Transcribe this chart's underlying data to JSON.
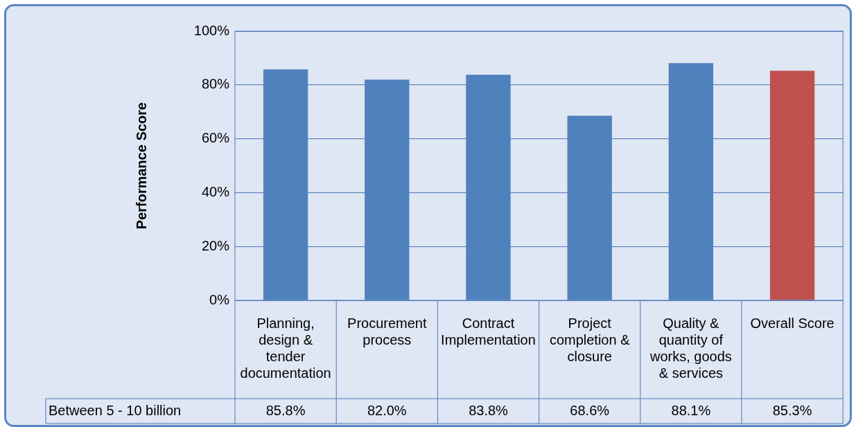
{
  "chart_data": {
    "type": "bar",
    "ylabel": "Performance Score",
    "categories": [
      "Planning, design & tender documentation",
      "Procurement process",
      "Contract Implementation",
      "Project completion & closure",
      "Quality & quantity of works, goods & services",
      "Overall Score"
    ],
    "series": [
      {
        "name": "Between 5 - 10 billion",
        "colors": [
          "#4f81bd",
          "#4f81bd",
          "#4f81bd",
          "#4f81bd",
          "#4f81bd",
          "#c0504d"
        ],
        "values": [
          85.8,
          82.0,
          83.8,
          68.6,
          88.1,
          85.3
        ],
        "value_labels": [
          "85.8%",
          "82.0%",
          "83.8%",
          "68.6%",
          "88.1%",
          "85.3%"
        ]
      }
    ],
    "ylim": [
      0,
      100
    ],
    "yticks": [
      {
        "value": 0,
        "label": "0%"
      },
      {
        "value": 20,
        "label": "20%"
      },
      {
        "value": 40,
        "label": "40%"
      },
      {
        "value": 60,
        "label": "60%"
      },
      {
        "value": 80,
        "label": "80%"
      },
      {
        "value": 100,
        "label": "100%"
      }
    ],
    "grid": "y",
    "legend": "bottom left"
  }
}
